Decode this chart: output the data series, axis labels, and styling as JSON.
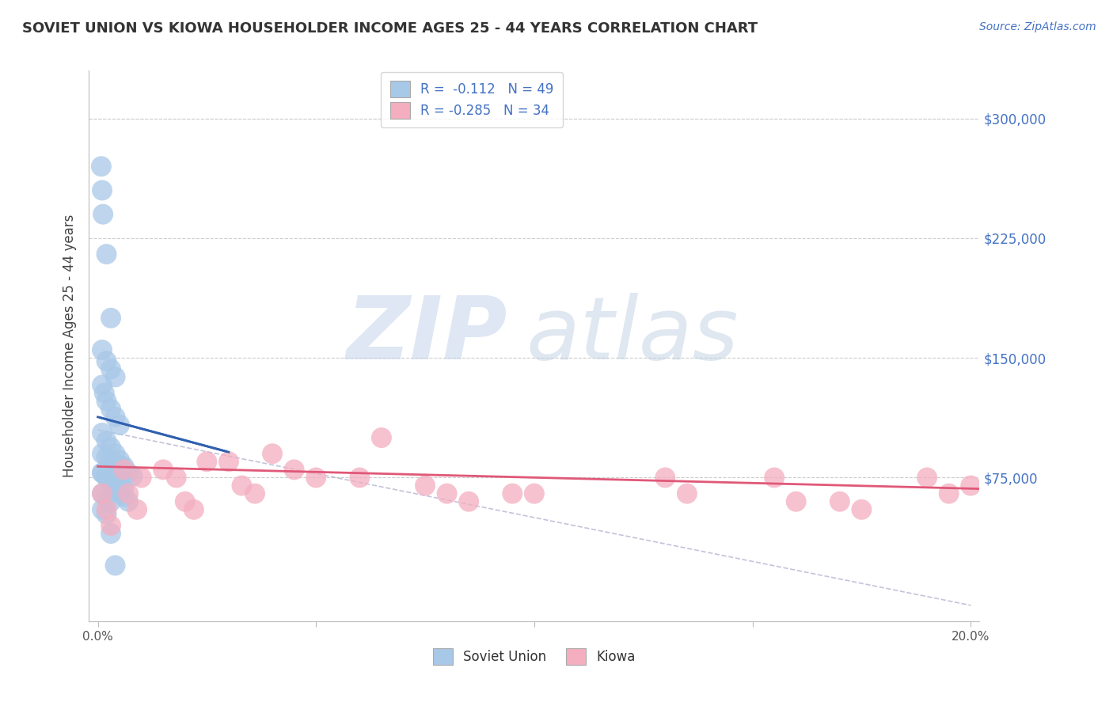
{
  "title": "SOVIET UNION VS KIOWA HOUSEHOLDER INCOME AGES 25 - 44 YEARS CORRELATION CHART",
  "source": "Source: ZipAtlas.com",
  "ylabel": "Householder Income Ages 25 - 44 years",
  "xlim": [
    -0.002,
    0.202
  ],
  "ylim": [
    -15000,
    330000
  ],
  "xtick_vals": [
    0.0,
    0.05,
    0.1,
    0.15,
    0.2
  ],
  "xtick_labels": [
    "0.0%",
    "",
    "",
    "",
    "20.0%"
  ],
  "ytick_values": [
    75000,
    150000,
    225000,
    300000
  ],
  "ytick_labels": [
    "$75,000",
    "$150,000",
    "$225,000",
    "$300,000"
  ],
  "soviet_R": "-0.112",
  "soviet_N": "49",
  "kiowa_R": "-0.285",
  "kiowa_N": "34",
  "soviet_color": "#a8c8e8",
  "kiowa_color": "#f4aec0",
  "soviet_line_color": "#3060b0",
  "kiowa_line_color": "#e05878",
  "background_color": "#ffffff",
  "legend_label_1": "Soviet Union",
  "legend_label_2": "Kiowa",
  "soviet_x": [
    0.0008,
    0.001,
    0.0012,
    0.002,
    0.003,
    0.001,
    0.002,
    0.003,
    0.004,
    0.001,
    0.0015,
    0.002,
    0.003,
    0.004,
    0.005,
    0.001,
    0.002,
    0.003,
    0.004,
    0.005,
    0.006,
    0.001,
    0.002,
    0.003,
    0.004,
    0.005,
    0.006,
    0.007,
    0.001,
    0.002,
    0.003,
    0.004,
    0.005,
    0.006,
    0.007,
    0.008,
    0.001,
    0.002,
    0.003,
    0.004,
    0.005,
    0.006,
    0.001,
    0.002,
    0.003,
    0.004,
    0.001,
    0.002,
    0.003
  ],
  "soviet_y": [
    270000,
    255000,
    240000,
    215000,
    175000,
    155000,
    148000,
    143000,
    138000,
    133000,
    128000,
    123000,
    118000,
    113000,
    108000,
    103000,
    98000,
    94000,
    90000,
    86000,
    82000,
    78000,
    75000,
    72000,
    69000,
    66000,
    63000,
    60000,
    90000,
    88000,
    86000,
    84000,
    82000,
    80000,
    78000,
    76000,
    78000,
    76000,
    74000,
    72000,
    70000,
    68000,
    55000,
    52000,
    40000,
    20000,
    65000,
    62000,
    60000
  ],
  "kiowa_x": [
    0.001,
    0.002,
    0.003,
    0.006,
    0.007,
    0.009,
    0.01,
    0.015,
    0.018,
    0.02,
    0.022,
    0.025,
    0.03,
    0.033,
    0.036,
    0.04,
    0.045,
    0.05,
    0.06,
    0.065,
    0.075,
    0.08,
    0.085,
    0.095,
    0.1,
    0.13,
    0.135,
    0.155,
    0.16,
    0.17,
    0.175,
    0.19,
    0.195,
    0.2
  ],
  "kiowa_y": [
    65000,
    55000,
    45000,
    80000,
    65000,
    55000,
    75000,
    80000,
    75000,
    60000,
    55000,
    85000,
    85000,
    70000,
    65000,
    90000,
    80000,
    75000,
    75000,
    100000,
    70000,
    65000,
    60000,
    65000,
    65000,
    75000,
    65000,
    75000,
    60000,
    60000,
    55000,
    75000,
    65000,
    70000
  ]
}
